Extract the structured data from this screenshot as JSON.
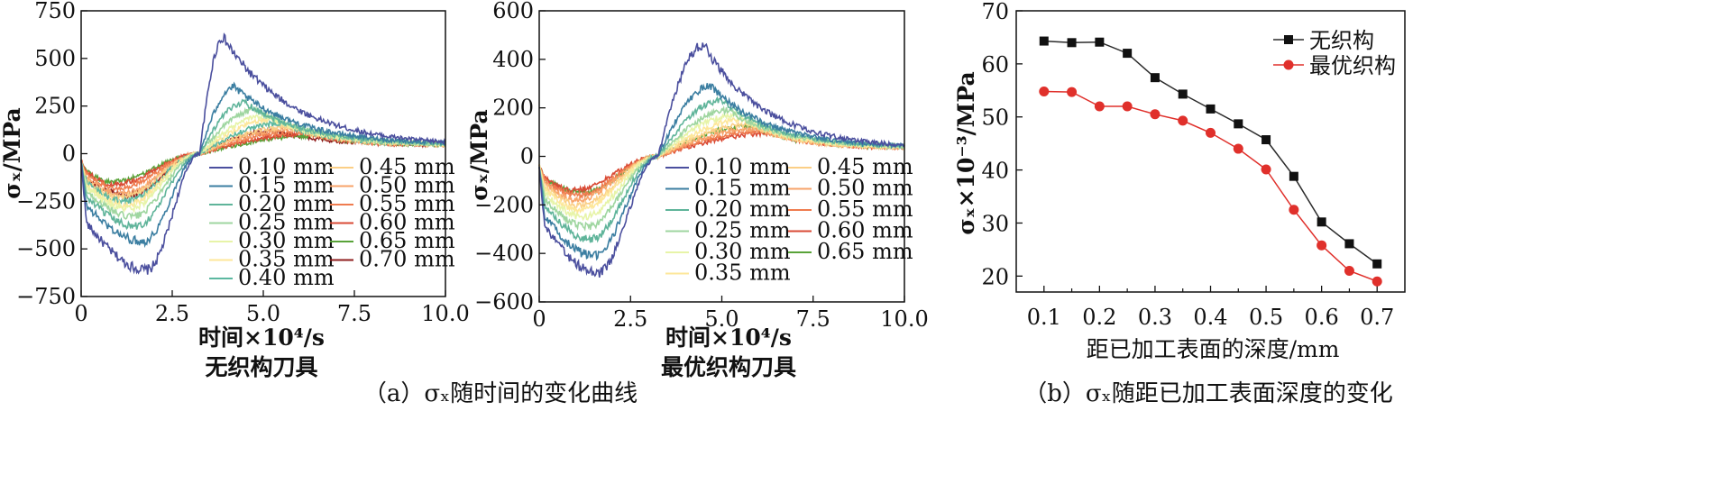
{
  "panels": [
    {
      "subtitle": "无织构刀具",
      "xlabel": "时间×10⁴/s",
      "ylabel": "σₓ/MPa",
      "ylim": [
        -750,
        750
      ],
      "yticks": [
        "750",
        "500",
        "250",
        "0",
        "−250",
        "−500",
        "−750"
      ],
      "xticks": [
        "0",
        "2.5",
        "5.0",
        "7.5",
        "10.0"
      ],
      "legend_col1": [
        "0.10 mm",
        "0.15 mm",
        "0.20 mm",
        "0.25 mm",
        "0.30 mm",
        "0.35 mm",
        "0.40 mm"
      ],
      "legend_col2": [
        "0.45 mm",
        "0.50 mm",
        "0.55 mm",
        "0.60 mm",
        "0.65 mm",
        "0.70 mm"
      ]
    },
    {
      "subtitle": "最优织构刀具",
      "xlabel": "时间×10⁴/s",
      "ylabel": "σₓ/MPa",
      "ylim": [
        -600,
        600
      ],
      "yticks": [
        "600",
        "400",
        "200",
        "0",
        "−200",
        "−400",
        "−600"
      ],
      "xticks": [
        "0",
        "2.5",
        "5.0",
        "7.5",
        "10.0"
      ],
      "legend_col1": [
        "0.10 mm",
        "0.15 mm",
        "0.20 mm",
        "0.25 mm",
        "0.30 mm",
        "0.35 mm"
      ],
      "legend_col2": [
        "0.45 mm",
        "0.50 mm",
        "0.55 mm",
        "0.60 mm",
        "0.65 mm"
      ]
    },
    {
      "xlabel": "距已加工表面的深度/mm",
      "ylabel": "σₓ×10⁻³/MPa",
      "yticks": [
        "70",
        "60",
        "50",
        "40",
        "30",
        "20"
      ],
      "xticks": [
        "0.1",
        "0.2",
        "0.3",
        "0.4",
        "0.5",
        "0.6",
        "0.7"
      ],
      "legend": [
        "无织构",
        "最优织构"
      ]
    }
  ],
  "captions": {
    "a": "（a）σₓ随时间的变化曲线",
    "b": "（b）σₓ随距已加工表面深度的变化"
  },
  "colors": {
    "depth_palette": [
      "#4b4f9e",
      "#3b7ea1",
      "#5fb49a",
      "#9fd6a0",
      "#e7f4a8",
      "#fde79a",
      "#5cb8a0",
      "#fbcf86",
      "#f7a36a",
      "#ef7c4f",
      "#d94a35",
      "#59a339",
      "#8f1d1d"
    ],
    "no_texture": "#2b2b2b",
    "optimal_texture": "#e0302b"
  },
  "chart_data": [
    {
      "type": "line",
      "title": "无织构刀具",
      "xlabel": "时间×10⁴/s",
      "ylabel": "σₓ/MPa",
      "xlim": [
        0,
        10
      ],
      "ylim": [
        -750,
        750
      ],
      "series": [
        {
          "name": "0.10 mm",
          "min_y": -610,
          "x_min": 1.8,
          "max_y": 610,
          "x_max": 3.9,
          "end_y": 40
        },
        {
          "name": "0.15 mm",
          "min_y": -460,
          "x_min": 1.7,
          "max_y": 350,
          "x_max": 4.2,
          "end_y": 45
        },
        {
          "name": "0.20 mm",
          "min_y": -380,
          "x_min": 1.5,
          "max_y": 270,
          "x_max": 4.5,
          "end_y": 45
        },
        {
          "name": "0.25 mm",
          "min_y": -330,
          "x_min": 1.4,
          "max_y": 230,
          "x_max": 4.8,
          "end_y": 45
        },
        {
          "name": "0.30 mm",
          "min_y": -290,
          "x_min": 1.3,
          "max_y": 200,
          "x_max": 5.1,
          "end_y": 45
        },
        {
          "name": "0.35 mm",
          "min_y": -270,
          "x_min": 1.2,
          "max_y": 180,
          "x_max": 5.3,
          "end_y": 45
        },
        {
          "name": "0.40 mm",
          "min_y": -250,
          "x_min": 1.2,
          "max_y": 160,
          "x_max": 5.5,
          "end_y": 45
        },
        {
          "name": "0.45 mm",
          "min_y": -230,
          "x_min": 1.1,
          "max_y": 140,
          "x_max": 5.7,
          "end_y": 45
        },
        {
          "name": "0.50 mm",
          "min_y": -210,
          "x_min": 1.1,
          "max_y": 130,
          "x_max": 5.9,
          "end_y": 45
        },
        {
          "name": "0.55 mm",
          "min_y": -180,
          "x_min": 1.0,
          "max_y": 115,
          "x_max": 6.1,
          "end_y": 45
        },
        {
          "name": "0.60 mm",
          "min_y": -160,
          "x_min": 0.9,
          "max_y": 105,
          "x_max": 6.3,
          "end_y": 45
        },
        {
          "name": "0.65 mm",
          "min_y": -150,
          "x_min": 0.8,
          "max_y": 95,
          "x_max": 6.5,
          "end_y": 45
        },
        {
          "name": "0.70 mm",
          "min_y": -220,
          "x_min": 1.3,
          "max_y": 120,
          "x_max": 5.3,
          "end_y": 45
        }
      ]
    },
    {
      "type": "line",
      "title": "最优织构刀具",
      "xlabel": "时间×10⁴/s",
      "ylabel": "σₓ/MPa",
      "xlim": [
        0,
        10
      ],
      "ylim": [
        -600,
        600
      ],
      "series": [
        {
          "name": "0.10 mm",
          "min_y": -480,
          "x_min": 1.6,
          "max_y": 460,
          "x_max": 4.5,
          "end_y": 30
        },
        {
          "name": "0.15 mm",
          "min_y": -410,
          "x_min": 1.5,
          "max_y": 290,
          "x_max": 4.7,
          "end_y": 35
        },
        {
          "name": "0.20 mm",
          "min_y": -340,
          "x_min": 1.4,
          "max_y": 230,
          "x_max": 5.0,
          "end_y": 35
        },
        {
          "name": "0.25 mm",
          "min_y": -290,
          "x_min": 1.3,
          "max_y": 190,
          "x_max": 5.2,
          "end_y": 35
        },
        {
          "name": "0.30 mm",
          "min_y": -250,
          "x_min": 1.2,
          "max_y": 170,
          "x_max": 5.4,
          "end_y": 35
        },
        {
          "name": "0.35 mm",
          "min_y": -220,
          "x_min": 1.1,
          "max_y": 150,
          "x_max": 5.6,
          "end_y": 35
        },
        {
          "name": "0.45 mm",
          "min_y": -200,
          "x_min": 1.1,
          "max_y": 130,
          "x_max": 5.8,
          "end_y": 35
        },
        {
          "name": "0.50 mm",
          "min_y": -180,
          "x_min": 1.0,
          "max_y": 115,
          "x_max": 6.0,
          "end_y": 35
        },
        {
          "name": "0.55 mm",
          "min_y": -160,
          "x_min": 1.0,
          "max_y": 105,
          "x_max": 6.2,
          "end_y": 35
        },
        {
          "name": "0.60 mm",
          "min_y": -140,
          "x_min": 0.9,
          "max_y": 95,
          "x_max": 6.4,
          "end_y": 35
        },
        {
          "name": "0.65 mm",
          "min_y": -150,
          "x_min": 1.2,
          "max_y": 125,
          "x_max": 5.8,
          "end_y": 35
        }
      ]
    },
    {
      "type": "line",
      "xlabel": "距已加工表面的深度/mm",
      "ylabel": "σₓ×10⁻³/MPa",
      "xlim": [
        0.05,
        0.75
      ],
      "ylim": [
        17,
        70
      ],
      "legend_position": "top-right",
      "x": [
        0.1,
        0.15,
        0.2,
        0.25,
        0.3,
        0.35,
        0.4,
        0.45,
        0.5,
        0.55,
        0.6,
        0.65,
        0.7
      ],
      "series": [
        {
          "name": "无织构",
          "marker": "square",
          "values": [
            64.3,
            64.0,
            64.1,
            62.0,
            57.4,
            54.3,
            51.5,
            48.7,
            45.7,
            38.8,
            30.2,
            26.1,
            22.3
          ]
        },
        {
          "name": "最优织构",
          "marker": "circle",
          "values": [
            54.8,
            54.7,
            52.0,
            52.0,
            50.5,
            49.3,
            47.0,
            44.0,
            40.1,
            32.5,
            25.8,
            21.0,
            19.0
          ]
        }
      ]
    }
  ]
}
